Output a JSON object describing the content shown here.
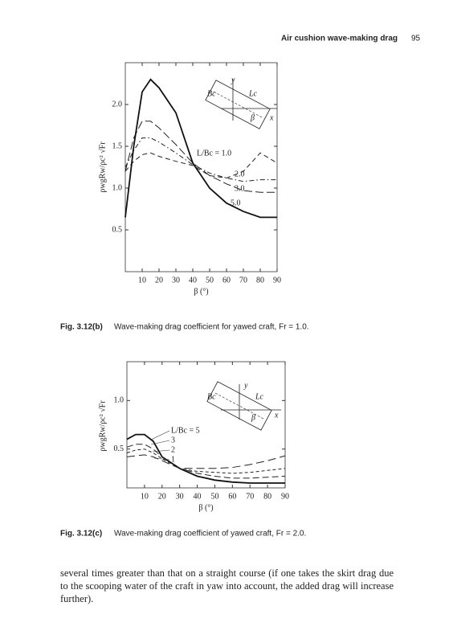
{
  "header": {
    "title": "Air cushion wave-making drag",
    "page": "95"
  },
  "chart_data": [
    {
      "type": "line",
      "xlabel": "β (°)",
      "ylabel": "ρwgRw/ρc² √Fr",
      "x": [
        0,
        5,
        10,
        15,
        20,
        30,
        40,
        50,
        60,
        70,
        80,
        90
      ],
      "series": [
        {
          "name": "L/Bc = 1.0",
          "color": "#222222",
          "values": [
            1.2,
            1.32,
            1.4,
            1.42,
            1.38,
            1.32,
            1.27,
            1.15,
            1.12,
            1.2,
            1.42,
            1.3
          ]
        },
        {
          "name": "2.0",
          "color": "#222222",
          "values": [
            1.25,
            1.45,
            1.6,
            1.6,
            1.55,
            1.42,
            1.28,
            1.18,
            1.12,
            1.08,
            1.1,
            1.1
          ]
        },
        {
          "name": "3.0",
          "color": "#222222",
          "values": [
            1.2,
            1.6,
            1.8,
            1.8,
            1.72,
            1.52,
            1.3,
            1.15,
            1.05,
            0.97,
            0.95,
            0.95
          ]
        },
        {
          "name": "5.0",
          "color": "#111111",
          "values": [
            0.65,
            1.5,
            2.15,
            2.3,
            2.2,
            1.9,
            1.3,
            1.0,
            0.82,
            0.72,
            0.65,
            0.65
          ]
        }
      ],
      "xlim": [
        0,
        90
      ],
      "xticks": [
        10,
        20,
        30,
        40,
        50,
        60,
        70,
        80,
        90
      ],
      "ylim": [
        0,
        2.5
      ],
      "yticks": [
        0.5,
        {
          "value": 1,
          "label": "1.0"
        },
        1.5,
        {
          "value": 2,
          "label": "2.0"
        }
      ],
      "inset_labels": [
        "y",
        "Lc",
        "Bc",
        "β",
        "x"
      ]
    },
    {
      "type": "line",
      "xlabel": "β (°)",
      "ylabel": "ρwgRw/ρc² √Fr",
      "x": [
        0,
        5,
        10,
        15,
        20,
        30,
        40,
        50,
        60,
        70,
        80,
        90
      ],
      "series": [
        {
          "name": "L/Bc = 5",
          "color": "#111111",
          "values": [
            0.6,
            0.65,
            0.65,
            0.58,
            0.42,
            0.3,
            0.22,
            0.18,
            0.16,
            0.15,
            0.15,
            0.15
          ]
        },
        {
          "name": "3",
          "color": "#222222",
          "values": [
            0.52,
            0.55,
            0.55,
            0.5,
            0.42,
            0.3,
            0.25,
            0.22,
            0.2,
            0.2,
            0.21,
            0.22
          ]
        },
        {
          "name": "2",
          "color": "#222222",
          "values": [
            0.46,
            0.49,
            0.5,
            0.46,
            0.4,
            0.3,
            0.27,
            0.26,
            0.25,
            0.26,
            0.28,
            0.3
          ]
        },
        {
          "name": "1",
          "color": "#222222",
          "values": [
            0.42,
            0.43,
            0.44,
            0.42,
            0.38,
            0.3,
            0.3,
            0.3,
            0.31,
            0.34,
            0.38,
            0.43
          ]
        }
      ],
      "xlim": [
        0,
        90
      ],
      "xticks": [
        10,
        20,
        30,
        40,
        50,
        60,
        70,
        80,
        90
      ],
      "ylim": [
        0.1,
        1.4
      ],
      "yticks": [
        0.5,
        {
          "value": 1,
          "label": "1.0"
        }
      ],
      "inset_labels": [
        "y",
        "Lc",
        "Bc",
        "β",
        "x"
      ]
    }
  ],
  "captions": [
    {
      "label": "Fig. 3.12(b)",
      "text": "Wave-making drag coefficient for yawed craft, Fr = 1.0."
    },
    {
      "label": "Fig. 3.12(c)",
      "text": "Wave-making drag coefficient of yawed craft, Fr = 2.0."
    }
  ],
  "body": "several times greater than that on a straight course (if one takes the skirt drag due to the scooping water of the craft in yaw into account, the added drag will increase further)."
}
